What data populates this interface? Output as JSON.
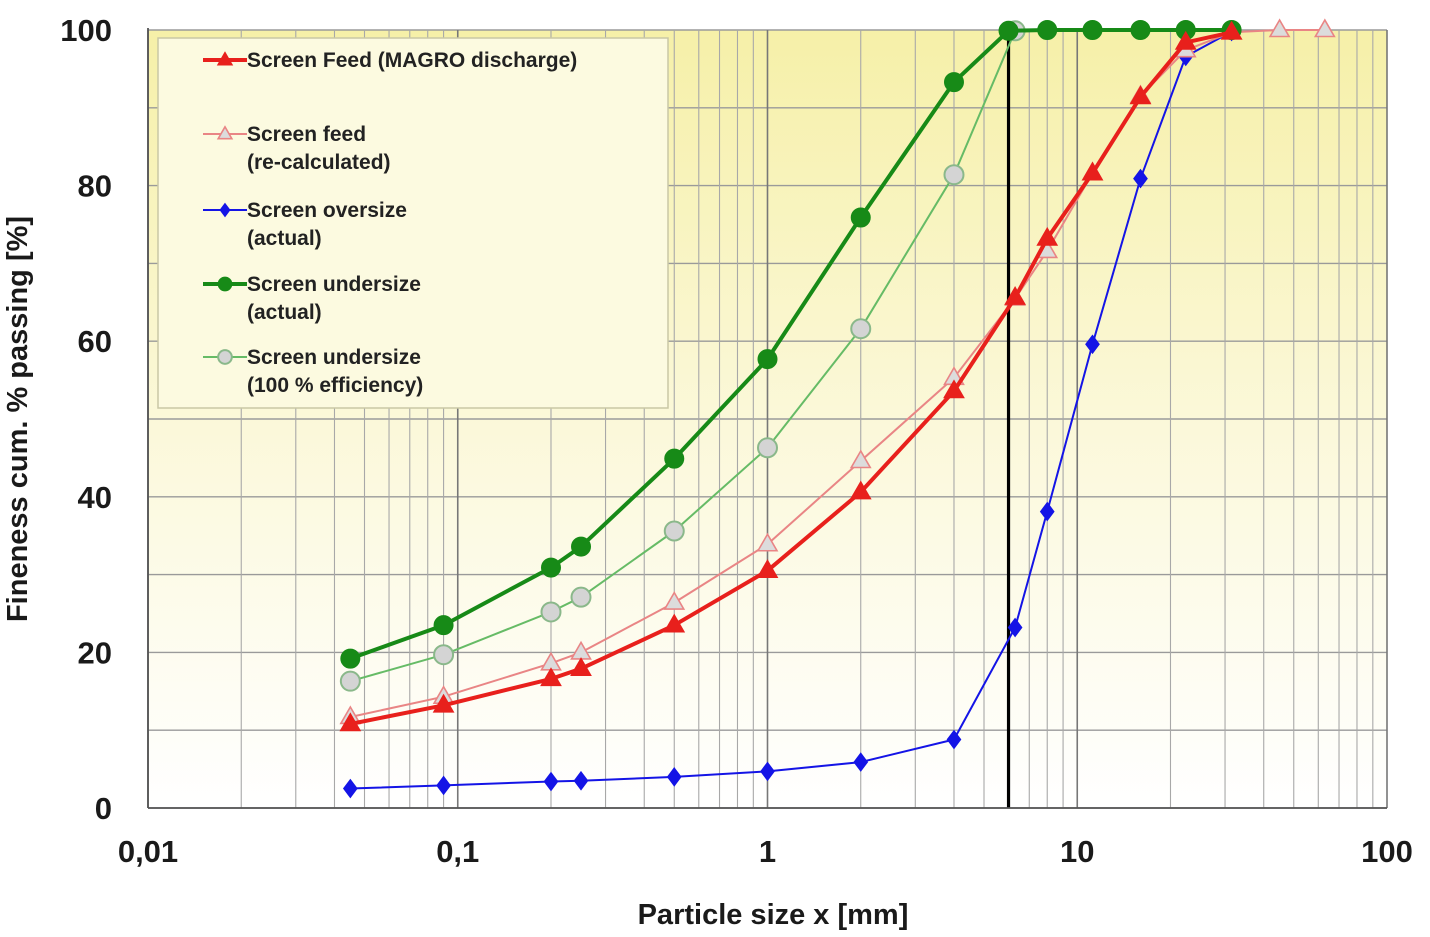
{
  "chart_data": {
    "type": "line",
    "xscale": "log",
    "xlim": [
      0.01,
      100
    ],
    "ylim": [
      0,
      100
    ],
    "xlabel": "Particle size x [mm]",
    "ylabel": "Fineness cum. % passing [%]",
    "xticks": [
      0.01,
      0.1,
      1,
      10,
      100
    ],
    "xtick_labels": [
      "0,01",
      "0,1",
      "1",
      "10",
      "100"
    ],
    "yticks": [
      0,
      20,
      40,
      60,
      80,
      100
    ],
    "ytick_labels": [
      "0",
      "20",
      "40",
      "60",
      "80",
      "100"
    ],
    "grid": true,
    "legend_position": "top-left",
    "cut_size_line": {
      "x": 6,
      "color": "#000000"
    },
    "series": [
      {
        "name": "Screen Feed (MAGRO discharge)",
        "marker": "triangle-filled",
        "color": "#e8201c",
        "line_width": 4,
        "x": [
          0.045,
          0.09,
          0.2,
          0.25,
          0.5,
          1,
          2,
          4,
          6.3,
          8,
          11.2,
          16,
          22.4,
          31.5
        ],
        "y": [
          10.8,
          13.2,
          16.6,
          17.9,
          23.5,
          30.5,
          40.6,
          53.6,
          65.6,
          73.2,
          81.6,
          91.4,
          98.4,
          99.7
        ]
      },
      {
        "name": "Screen feed\n(re-calculated)",
        "marker": "triangle-open",
        "color": "#e98585",
        "line_width": 2,
        "x": [
          0.045,
          0.09,
          0.2,
          0.25,
          0.5,
          1,
          2,
          4,
          6.3,
          8,
          11.2,
          16,
          22.4,
          31.5,
          45,
          63
        ],
        "y": [
          11.7,
          14.3,
          18.6,
          20,
          26.4,
          33.9,
          44.6,
          55.3,
          65.5,
          71.6,
          81.6,
          91.5,
          97.4,
          99.7,
          100,
          100
        ]
      },
      {
        "name": "Screen oversize\n(actual)",
        "marker": "diamond-filled",
        "color": "#1414e6",
        "line_width": 2,
        "x": [
          0.045,
          0.09,
          0.2,
          0.25,
          0.5,
          1,
          2,
          4,
          6.3,
          8,
          11.2,
          16,
          22.4,
          31.5
        ],
        "y": [
          2.5,
          2.9,
          3.4,
          3.5,
          4,
          4.7,
          5.9,
          8.8,
          23.2,
          38.1,
          59.6,
          80.9,
          96.6,
          99.8
        ]
      },
      {
        "name": "Screen undersize\n(actual)",
        "marker": "circle-filled",
        "color": "#178a17",
        "line_width": 4,
        "x": [
          0.045,
          0.09,
          0.2,
          0.25,
          0.5,
          1,
          2,
          4,
          6,
          8,
          11.2,
          16,
          22.4,
          31.5
        ],
        "y": [
          19.2,
          23.5,
          30.9,
          33.6,
          44.9,
          57.7,
          75.9,
          93.3,
          99.9,
          100,
          100,
          100,
          100,
          100
        ]
      },
      {
        "name": "Screen undersize\n(100 % efficiency)",
        "marker": "circle-open",
        "color": "#66bb66",
        "line_width": 2,
        "x": [
          0.045,
          0.09,
          0.2,
          0.25,
          0.5,
          1,
          2,
          4,
          6.3
        ],
        "y": [
          16.3,
          19.7,
          25.2,
          27.1,
          35.6,
          46.3,
          61.6,
          81.4,
          99.9
        ]
      }
    ]
  }
}
